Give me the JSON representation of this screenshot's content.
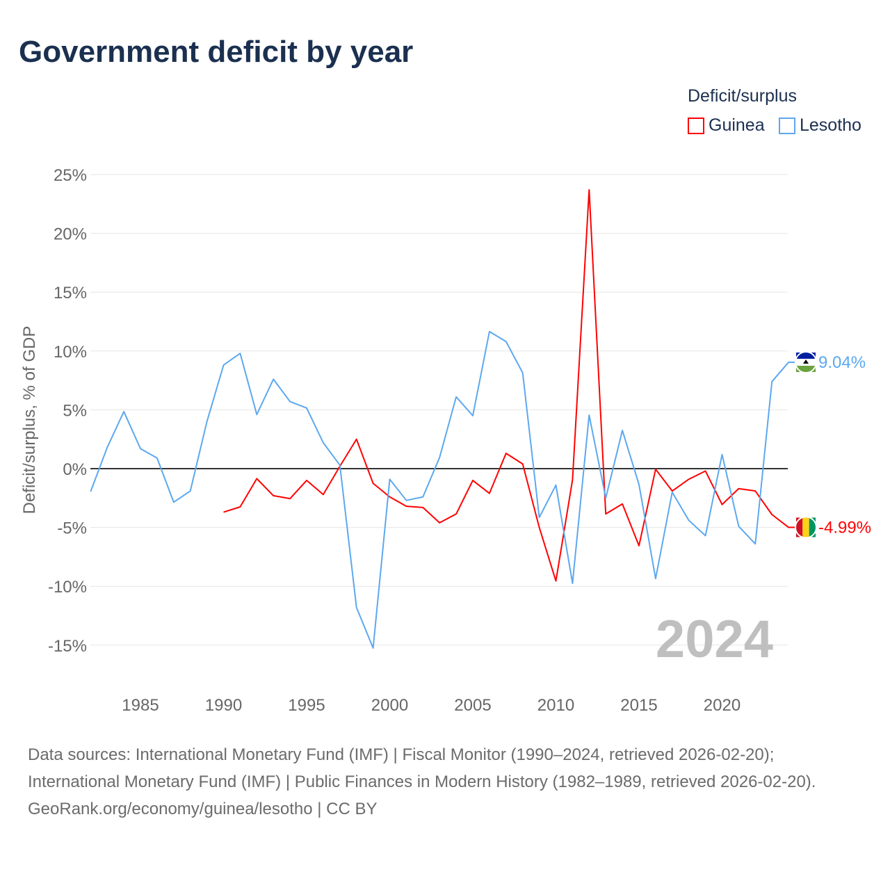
{
  "title": "Government deficit by year",
  "legend": {
    "title": "Deficit/surplus",
    "items": [
      {
        "name": "Guinea",
        "color": "#ff0000"
      },
      {
        "name": "Lesotho",
        "color": "#5ca8ef"
      }
    ]
  },
  "year_watermark": "2024",
  "source": {
    "line1": "Data sources: International Monetary Fund (IMF) | Fiscal Monitor (1990–2024, retrieved 2026-02-20); International Monetary Fund (IMF) | Public Finances in Modern History (1982–1989, retrieved 2026-02-20).",
    "line2": "GeoRank.org/economy/guinea/lesotho | CC BY"
  },
  "chart_data": {
    "type": "line",
    "title": "Government deficit by year",
    "xlabel": "",
    "ylabel": "Deficit/surplus, % of GDP",
    "xlim": [
      1982,
      2024
    ],
    "ylim": [
      -17,
      25
    ],
    "x_ticks": [
      1985,
      1990,
      1995,
      2000,
      2005,
      2010,
      2015,
      2020
    ],
    "y_ticks": [
      25,
      20,
      15,
      10,
      5,
      0,
      -5,
      -10,
      -15
    ],
    "y_tick_labels": [
      "25%",
      "20%",
      "15%",
      "10%",
      "5%",
      "0%",
      "-5%",
      "-10%",
      "-15%"
    ],
    "grid": true,
    "legend_position": "top-right",
    "series": [
      {
        "name": "Guinea",
        "color": "#ff0000",
        "end_label": "-4.99%",
        "start_year": 1990,
        "values": [
          -3.7,
          -3.25,
          -0.85,
          -2.3,
          -2.55,
          -1.0,
          -2.2,
          0.2,
          2.5,
          -1.25,
          -2.4,
          -3.2,
          -3.3,
          -4.6,
          -3.85,
          -1.0,
          -2.1,
          1.3,
          0.4,
          -5.0,
          -9.55,
          -0.95,
          23.7,
          -3.85,
          -3.0,
          -6.55,
          -0.05,
          -1.9,
          -0.9,
          -0.2,
          -3.05,
          -1.7,
          -1.9,
          -3.9,
          -4.99
        ]
      },
      {
        "name": "Lesotho",
        "color": "#5ca8ef",
        "end_label": "9.04%",
        "start_year": 1982,
        "values": [
          -1.95,
          1.8,
          4.85,
          1.7,
          0.9,
          -2.85,
          -1.9,
          4.0,
          8.8,
          9.8,
          4.6,
          7.6,
          5.7,
          5.15,
          2.2,
          0.3,
          -11.8,
          -15.25,
          -0.9,
          -2.7,
          -2.4,
          0.95,
          6.1,
          4.5,
          11.65,
          10.8,
          8.15,
          -4.15,
          -1.4,
          -9.75,
          4.55,
          -2.5,
          3.25,
          -1.35,
          -9.35,
          -2.0,
          -4.4,
          -5.7,
          1.2,
          -4.9,
          -6.4,
          7.4,
          9.04
        ]
      }
    ]
  }
}
